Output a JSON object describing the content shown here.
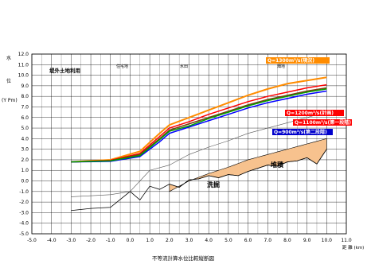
{
  "chart_data": {
    "type": "line",
    "title": "不等流計算水位比較縦断図",
    "xlabel": "距 離 (km)",
    "ylabel_chars": [
      "水",
      "位"
    ],
    "ylabel_unit": "(Y Pm)",
    "xlim": [
      -5.0,
      11.0
    ],
    "ylim": [
      -5.0,
      12.0
    ],
    "x_ticks": [
      "-5.0",
      "-4.0",
      "-3.0",
      "-2.0",
      "-1.0",
      "0.0",
      "1.0",
      "2.0",
      "3.0",
      "4.0",
      "5.0",
      "6.0",
      "7.0",
      "8.0",
      "9.0",
      "10.0",
      "11.0"
    ],
    "y_ticks": [
      "12.0",
      "11.0",
      "10.0",
      "9.0",
      "8.0",
      "7.0",
      "6.0",
      "5.0",
      "4.0",
      "3.0",
      "2.0",
      "1.0",
      "0.0",
      "-1.0",
      "-2.0",
      "-3.0",
      "-4.0",
      "-5.0"
    ],
    "grid": true,
    "landuse_labels": {
      "left": "堤外土地利用",
      "residential": "住宅地",
      "paddy": "水田",
      "farm": "畑地"
    },
    "zone_labels": {
      "scour": "洗掘",
      "sediment": "堆積"
    },
    "series_labels": {
      "s1": "Q=1300m³/s(現況)",
      "s2": "Q=1200m³/s(計画)",
      "s3": "Q=1100m³/s(第一段階)",
      "s4": "Q=900m³/s(第二段階)"
    },
    "series": [
      {
        "name": "Q=1300m³/s(現況)",
        "color": "#ff8c00",
        "x": [
          -3.0,
          -1.0,
          0.5,
          1.5,
          2.0,
          3.0,
          4.0,
          5.0,
          6.0,
          7.0,
          8.0,
          9.0,
          10.0
        ],
        "y": [
          1.8,
          2.0,
          2.8,
          4.5,
          5.3,
          6.0,
          6.7,
          7.4,
          8.1,
          8.7,
          9.2,
          9.5,
          9.8
        ]
      },
      {
        "name": "Q=1200m³/s(計画)",
        "color": "#ff0000",
        "x": [
          -3.0,
          -1.0,
          0.5,
          1.5,
          2.0,
          3.0,
          4.0,
          5.0,
          6.0,
          7.0,
          8.0,
          9.0,
          10.0
        ],
        "y": [
          1.8,
          1.95,
          2.6,
          4.2,
          5.0,
          5.6,
          6.3,
          6.9,
          7.5,
          8.0,
          8.4,
          8.8,
          9.1
        ]
      },
      {
        "name": "Q=1100m³/s(第一段階)",
        "color": "#7a3b10",
        "x": [
          -3.0,
          -1.0,
          0.5,
          1.5,
          2.0,
          3.0,
          4.0,
          5.0,
          6.0,
          7.0,
          8.0,
          9.0,
          10.0
        ],
        "y": [
          1.8,
          1.9,
          2.5,
          4.0,
          4.8,
          5.4,
          6.0,
          6.6,
          7.2,
          7.7,
          8.1,
          8.5,
          8.8
        ]
      },
      {
        "name": "Q=900m³/s(第二段階)",
        "color": "#0000ff",
        "x": [
          -3.0,
          -1.0,
          0.5,
          1.5,
          2.0,
          3.0,
          4.0,
          5.0,
          6.0,
          7.0,
          8.0,
          9.0,
          10.0
        ],
        "y": [
          1.8,
          1.85,
          2.3,
          3.7,
          4.5,
          5.1,
          5.7,
          6.3,
          6.9,
          7.4,
          7.8,
          8.2,
          8.5
        ]
      },
      {
        "name": "",
        "color": "#00a000",
        "x": [
          -3.0,
          -1.0,
          0.5,
          1.5,
          2.0,
          3.0,
          4.0,
          5.0,
          6.0,
          7.0,
          8.0,
          9.0,
          10.0
        ],
        "y": [
          1.8,
          1.9,
          2.4,
          3.9,
          4.7,
          5.2,
          5.9,
          6.5,
          7.1,
          7.6,
          8.0,
          8.4,
          8.7
        ]
      }
    ],
    "riverbed": {
      "x": [
        -3.0,
        -2.0,
        -1.0,
        0.0,
        0.5,
        1.0,
        1.5,
        2.0,
        2.5,
        3.0,
        3.5,
        4.0,
        4.5,
        5.0,
        5.5,
        6.0,
        6.5,
        7.0,
        7.5,
        8.0,
        8.5,
        9.0,
        9.5,
        10.0
      ],
      "y": [
        -2.8,
        -2.6,
        -2.5,
        -1.0,
        -1.8,
        -0.5,
        -0.8,
        -0.3,
        -0.6,
        0.1,
        0.2,
        0.5,
        0.3,
        0.6,
        0.5,
        0.9,
        1.2,
        1.5,
        1.4,
        1.8,
        1.9,
        2.2,
        1.6,
        3.0
      ]
    },
    "bank_lines": {
      "x": [
        -3.0,
        -1.0,
        0.0,
        1.0,
        2.0,
        3.0,
        4.0,
        5.0,
        6.0,
        7.0,
        8.0,
        9.0,
        10.0
      ],
      "y": [
        -1.5,
        -1.3,
        -1.0,
        1.0,
        1.5,
        2.5,
        3.2,
        3.8,
        4.5,
        5.0,
        5.5,
        6.0,
        6.5
      ]
    }
  }
}
